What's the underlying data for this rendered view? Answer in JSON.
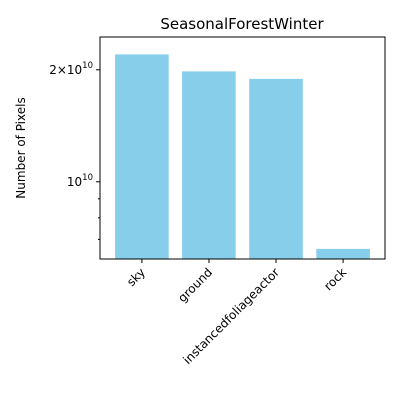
{
  "chart_data": {
    "type": "bar",
    "title": "SeasonalForestWinter",
    "xlabel": "",
    "ylabel": "Number of Pixels",
    "categories": [
      "sky",
      "ground",
      "instancedfoliageactor",
      "rock"
    ],
    "values": [
      22000000000,
      19800000000,
      18900000000,
      6600000000
    ],
    "yscale": "log",
    "ylim": [
      6200000000,
      24500000000
    ],
    "yticks_major": [
      {
        "value": 20000000000,
        "label_base": "2×10",
        "label_exp": "10"
      },
      {
        "value": 10000000000,
        "label_base": "10",
        "label_exp": "10"
      }
    ],
    "yticks_minor": [
      7000000000,
      8000000000,
      9000000000
    ],
    "bar_color": "#87ceeb",
    "grid": false,
    "legend": "none"
  }
}
